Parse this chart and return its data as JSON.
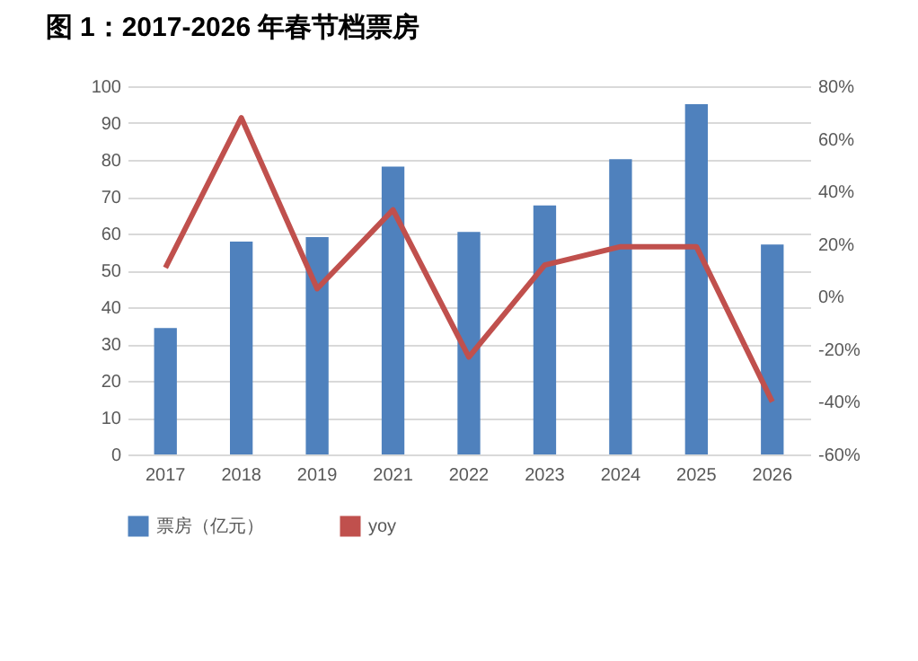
{
  "chart_data": {
    "type": "bar",
    "title": "图 1：2017-2026 年春节档票房",
    "categories": [
      "2017",
      "2018",
      "2019",
      "2021",
      "2022",
      "2023",
      "2024",
      "2025",
      "2026"
    ],
    "series": [
      {
        "name": "票房（亿元）",
        "color": "#4f81bd",
        "values": [
          34.3,
          57.8,
          59.0,
          78.2,
          60.4,
          67.6,
          80.2,
          95.1,
          57.0
        ]
      },
      {
        "name": "yoy",
        "type": "line",
        "axis": "y2",
        "color": "#c0504d",
        "values": [
          11,
          68,
          3,
          33,
          -23,
          12,
          19,
          19,
          -40
        ]
      }
    ],
    "ylim": [
      0,
      100
    ],
    "yticks": [
      0,
      10,
      20,
      30,
      40,
      50,
      60,
      70,
      80,
      90,
      100
    ],
    "y2lim": [
      -60,
      80
    ],
    "y2ticks": [
      {
        "value": -60,
        "label": "-60%"
      },
      {
        "value": -40,
        "label": "-40%"
      },
      {
        "value": -20,
        "label": "-20%"
      },
      {
        "value": 0,
        "label": "0%"
      },
      {
        "value": 20,
        "label": "20%"
      },
      {
        "value": 40,
        "label": "40%"
      },
      {
        "value": 60,
        "label": "60%"
      },
      {
        "value": 80,
        "label": "80%"
      }
    ],
    "grid": "y",
    "legend": "bottom",
    "marker": "none",
    "line_style": "solid"
  }
}
